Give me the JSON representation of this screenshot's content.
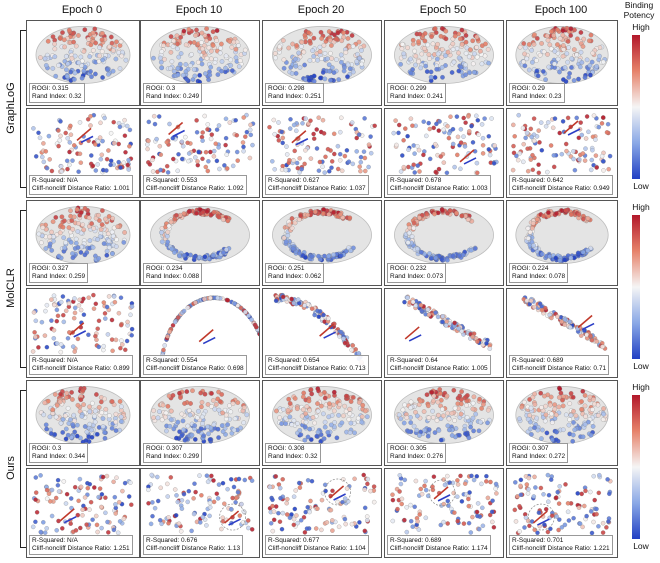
{
  "colorbar": {
    "title": "Binding Potency",
    "high_label": "High",
    "low_label": "Low",
    "high_color": "#b2182b",
    "low_color": "#2140c4"
  },
  "columns": [
    "Epoch 0",
    "Epoch 10",
    "Epoch 20",
    "Epoch 50",
    "Epoch 100"
  ],
  "methods": [
    {
      "name": "GraphLoG",
      "clustering": [
        {
          "l1": "ROGI: 0.315",
          "l2": "Rand Index: 0.32"
        },
        {
          "l1": "ROGI: 0.3",
          "l2": "Rand Index: 0.249"
        },
        {
          "l1": "ROGI: 0.298",
          "l2": "Rand Index: 0.251"
        },
        {
          "l1": "ROGI: 0.299",
          "l2": "Rand Index: 0.241"
        },
        {
          "l1": "ROGI: 0.29",
          "l2": "Rand Index: 0.23"
        }
      ],
      "cliff": [
        {
          "l1": "R-Squared: N/A",
          "l2": "Cliff-noncliff Distance Ratio: 1.001"
        },
        {
          "l1": "R-Squared: 0.553",
          "l2": "Cliff-noncliff Distance Ratio: 1.092"
        },
        {
          "l1": "R-Squared: 0.627",
          "l2": "Cliff-noncliff Distance Ratio: 1.037"
        },
        {
          "l1": "R-Squared: 0.678",
          "l2": "Cliff-noncliff Distance Ratio: 1.003"
        },
        {
          "l1": "R-Squared: 0.642",
          "l2": "Cliff-noncliff Distance Ratio: 0.949"
        }
      ]
    },
    {
      "name": "MolCLR",
      "clustering": [
        {
          "l1": "ROGI: 0.327",
          "l2": "Rand Index: 0.259"
        },
        {
          "l1": "ROGI: 0.234",
          "l2": "Rand Index: 0.088"
        },
        {
          "l1": "ROGI: 0.251",
          "l2": "Rand Index: 0.062"
        },
        {
          "l1": "ROGI: 0.232",
          "l2": "Rand Index: 0.073"
        },
        {
          "l1": "ROGI: 0.224",
          "l2": "Rand Index: 0.078"
        }
      ],
      "cliff": [
        {
          "l1": "R-Squared: N/A",
          "l2": "Cliff-noncliff Distance Ratio: 0.899"
        },
        {
          "l1": "R-Squared: 0.554",
          "l2": "Cliff-noncliff Distance Ratio: 0.698"
        },
        {
          "l1": "R-Squared: 0.654",
          "l2": "Cliff-noncliff Distance Ratio: 0.713"
        },
        {
          "l1": "R-Squared: 0.64",
          "l2": "Cliff-noncliff Distance Ratio: 1.005"
        },
        {
          "l1": "R-Squared: 0.689",
          "l2": "Cliff-noncliff Distance Ratio: 0.71"
        }
      ]
    },
    {
      "name": "Ours",
      "clustering": [
        {
          "l1": "ROGI: 0.3",
          "l2": "Rand Index: 0.344"
        },
        {
          "l1": "ROGI: 0.307",
          "l2": "Rand Index: 0.299"
        },
        {
          "l1": "ROGI: 0.308",
          "l2": "Rand Index: 0.32"
        },
        {
          "l1": "ROGI: 0.305",
          "l2": "Rand Index: 0.276"
        },
        {
          "l1": "ROGI: 0.307",
          "l2": "Rand Index: 0.272"
        }
      ],
      "cliff": [
        {
          "l1": "R-Squared: N/A",
          "l2": "Cliff-noncliff Distance Ratio: 1.251"
        },
        {
          "l1": "R-Squared: 0.676",
          "l2": "Cliff-noncliff Distance Ratio: 1.13"
        },
        {
          "l1": "R-Squared: 0.677",
          "l2": "Cliff-noncliff Distance Ratio: 1.104"
        },
        {
          "l1": "R-Squared: 0.689",
          "l2": "Cliff-noncliff Distance Ratio: 1.174"
        },
        {
          "l1": "R-Squared: 0.701",
          "l2": "Cliff-noncliff Distance Ratio: 1.221"
        }
      ]
    }
  ]
}
